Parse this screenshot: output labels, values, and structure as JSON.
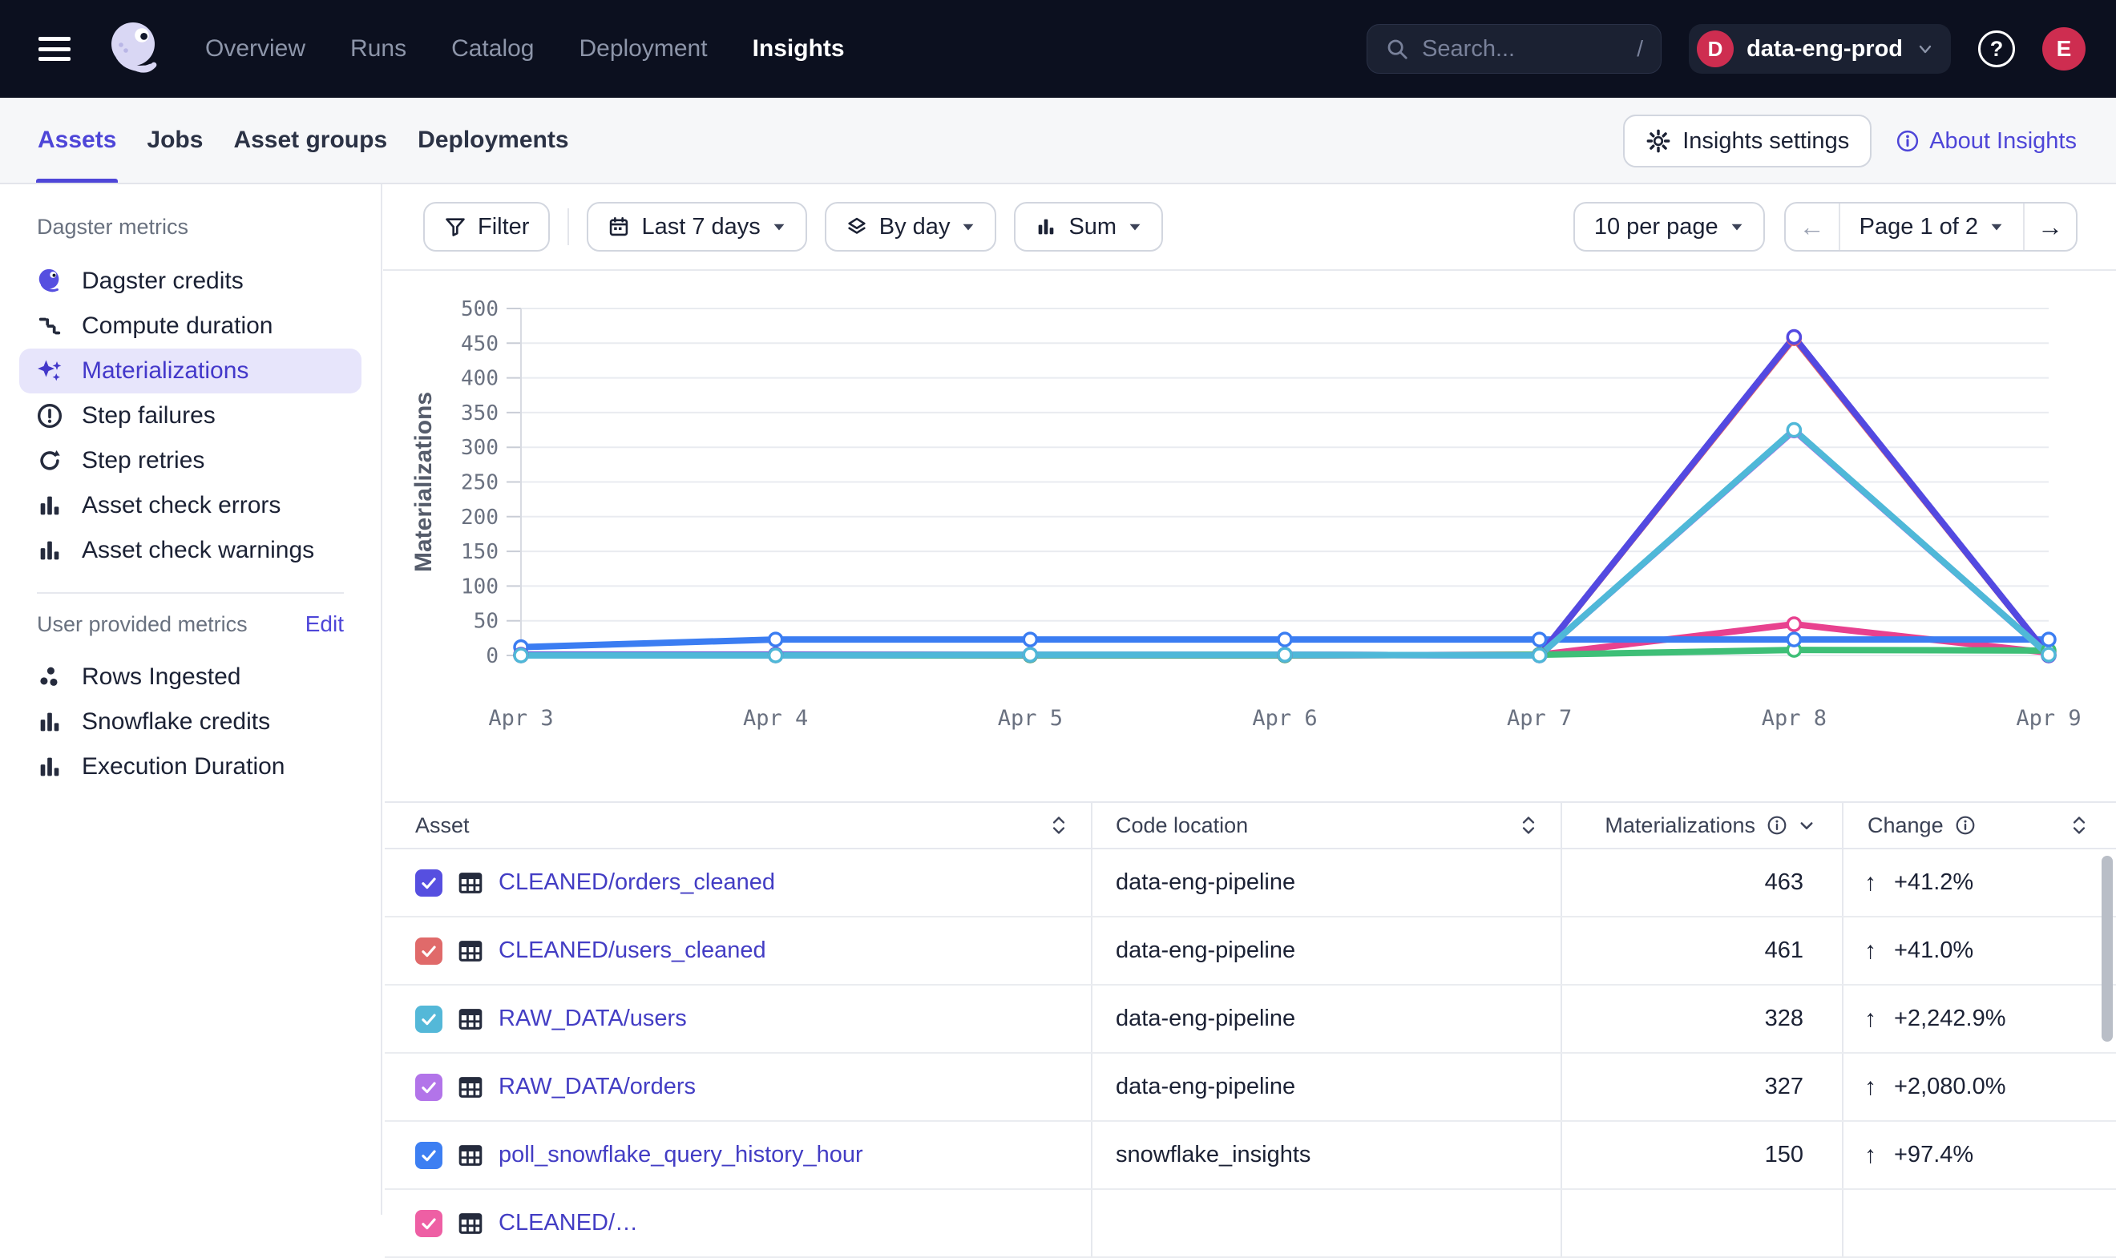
{
  "topnav": {
    "menu": [
      "Overview",
      "Runs",
      "Catalog",
      "Deployment",
      "Insights"
    ],
    "active": "Insights",
    "search_placeholder": "Search...",
    "search_shortcut": "/",
    "org": {
      "initial": "D",
      "name": "data-eng-prod"
    },
    "avatar_initial": "E"
  },
  "tabsbar": {
    "tabs": [
      "Assets",
      "Jobs",
      "Asset groups",
      "Deployments"
    ],
    "active": "Assets",
    "settings_label": "Insights settings",
    "about_label": "About Insights"
  },
  "sidebar": {
    "dagster_metrics": {
      "title": "Dagster metrics",
      "items": [
        "Dagster credits",
        "Compute duration",
        "Materializations",
        "Step failures",
        "Step retries",
        "Asset check errors",
        "Asset check warnings"
      ],
      "selected": "Materializations"
    },
    "user_metrics": {
      "title": "User provided metrics",
      "action": "Edit",
      "items": [
        "Rows Ingested",
        "Snowflake credits",
        "Execution Duration"
      ]
    }
  },
  "toolbar": {
    "filter_label": "Filter",
    "range_label": "Last 7 days",
    "granularity_label": "By day",
    "aggregation_label": "Sum",
    "per_page_label": "10 per page",
    "page_label": "Page 1 of 2",
    "prev_arrow": "←",
    "next_arrow": "→"
  },
  "chart_data": {
    "type": "line",
    "title": "",
    "xlabel": "",
    "ylabel": "Materializations",
    "ylim": [
      0,
      500
    ],
    "ytick_step": 50,
    "grid": true,
    "legend": "none",
    "x_labels": [
      "Apr 3",
      "Apr 4",
      "Apr 5",
      "Apr 6",
      "Apr 7",
      "Apr 8",
      "Apr 9"
    ],
    "series": [
      {
        "name": "unlabeled-pink",
        "color": "#e8418f",
        "values": [
          0,
          0,
          0,
          0,
          1,
          45,
          4
        ]
      },
      {
        "name": "unlabeled-green",
        "color": "#3ebf77",
        "values": [
          0,
          0,
          0,
          0,
          1,
          8,
          7
        ]
      },
      {
        "name": "poll_snowflake_query_history_hour",
        "color": "#3b7df2",
        "values": [
          12,
          23,
          23,
          23,
          23,
          23,
          23
        ]
      },
      {
        "name": "CLEANED/users_cleaned",
        "color": "#e0606a",
        "values": [
          1,
          1,
          1,
          1,
          0,
          457,
          0
        ]
      },
      {
        "name": "CLEANED/orders_cleaned",
        "color": "#5349e1",
        "values": [
          1,
          1,
          1,
          1,
          0,
          459,
          0
        ]
      },
      {
        "name": "RAW_DATA/orders",
        "color": "#b06ce6",
        "values": [
          0,
          0,
          1,
          1,
          0,
          324,
          1
        ]
      },
      {
        "name": "RAW_DATA/users",
        "color": "#4fb8d8",
        "values": [
          0,
          0,
          1,
          1,
          0,
          325,
          1
        ]
      }
    ]
  },
  "table": {
    "columns": [
      "Asset",
      "Code location",
      "Materializations",
      "Change"
    ],
    "up_arrow": "↑",
    "rows": [
      {
        "checkbox_color": "#564fe0",
        "asset": "CLEANED/orders_cleaned",
        "code_location": "data-eng-pipeline",
        "materializations": "463",
        "change": "+41.2%"
      },
      {
        "checkbox_color": "#e06a6a",
        "asset": "CLEANED/users_cleaned",
        "code_location": "data-eng-pipeline",
        "materializations": "461",
        "change": "+41.0%"
      },
      {
        "checkbox_color": "#54b8d8",
        "asset": "RAW_DATA/users",
        "code_location": "data-eng-pipeline",
        "materializations": "328",
        "change": "+2,242.9%"
      },
      {
        "checkbox_color": "#b274e9",
        "asset": "RAW_DATA/orders",
        "code_location": "data-eng-pipeline",
        "materializations": "327",
        "change": "+2,080.0%"
      },
      {
        "checkbox_color": "#3d7ff2",
        "asset": "poll_snowflake_query_history_hour",
        "code_location": "snowflake_insights",
        "materializations": "150",
        "change": "+97.4%"
      },
      {
        "checkbox_color": "#ee5fa4",
        "asset": "CLEANED/…",
        "code_location": "",
        "materializations": "",
        "change": ""
      }
    ]
  },
  "colors": {
    "accent": "#4e46d8",
    "topnav_bg": "#0c101f",
    "brand_red": "#ce2d50",
    "selected_pill": "#e7e5fb",
    "link": "#433dc4"
  }
}
